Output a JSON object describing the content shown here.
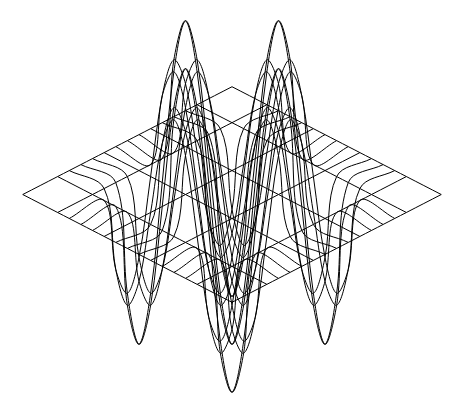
{
  "chart_data": {
    "type": "surface",
    "tick_labels": false,
    "color": "#000000",
    "x": [
      -9,
      -6,
      -5,
      -4,
      -3,
      -2,
      -1,
      0,
      1,
      2,
      3,
      4,
      5,
      6,
      9
    ],
    "y": [
      -9,
      -6,
      -5,
      -4,
      -3,
      -2,
      -1,
      0,
      1,
      2,
      3,
      4,
      5,
      6,
      9
    ],
    "zlim": [
      -1,
      1
    ],
    "z": [
      [
        0,
        0,
        0,
        0,
        0,
        0,
        0,
        0,
        0,
        0,
        0,
        0,
        0,
        0,
        0
      ],
      [
        0,
        0,
        0,
        0,
        0,
        0,
        0,
        0,
        0,
        0,
        0,
        0,
        0,
        0,
        0
      ],
      [
        0,
        0,
        -0.5,
        -0.7,
        -0.5,
        0,
        0.5,
        0.7,
        0.5,
        0,
        -0.5,
        -0.7,
        -0.5,
        0,
        0
      ],
      [
        0,
        0,
        -0.7,
        -1,
        -0.7,
        0,
        0.7,
        1,
        0.7,
        0,
        -0.7,
        -1,
        -0.7,
        0,
        0
      ],
      [
        0,
        0,
        -0.5,
        -0.7,
        -0.5,
        0,
        0.5,
        0.7,
        0.5,
        0,
        -0.5,
        -0.7,
        -0.5,
        0,
        0
      ],
      [
        0,
        0,
        0,
        0,
        0,
        0,
        0,
        0,
        0,
        0,
        0,
        0,
        0,
        0,
        0
      ],
      [
        0,
        0,
        0.5,
        0.7,
        0.5,
        0,
        -0.5,
        -0.7,
        -0.5,
        0,
        0.5,
        0.7,
        0.5,
        0,
        0
      ],
      [
        0,
        0,
        0.7,
        1,
        0.7,
        0,
        -0.7,
        -1,
        -0.7,
        0,
        0.7,
        1,
        0.7,
        0,
        0
      ],
      [
        0,
        0,
        0.5,
        0.7,
        0.5,
        0,
        -0.5,
        -0.7,
        -0.5,
        0,
        0.5,
        0.7,
        0.5,
        0,
        0
      ],
      [
        0,
        0,
        0,
        0,
        0,
        0,
        0,
        0,
        0,
        0,
        0,
        0,
        0,
        0,
        0
      ],
      [
        0,
        0,
        -0.5,
        -0.7,
        -0.5,
        0,
        0.5,
        0.7,
        0.5,
        0,
        -0.5,
        -0.7,
        -0.5,
        0,
        0
      ],
      [
        0,
        0,
        -0.7,
        -1,
        -0.7,
        0,
        0.7,
        1,
        0.7,
        0,
        -0.7,
        -1,
        -0.7,
        0,
        0
      ],
      [
        0,
        0,
        -0.5,
        -0.7,
        -0.5,
        0,
        0.5,
        0.7,
        0.5,
        0,
        -0.5,
        -0.7,
        -0.5,
        0,
        0
      ],
      [
        0,
        0,
        0,
        0,
        0,
        0,
        0,
        0,
        0,
        0,
        0,
        0,
        0,
        0,
        0
      ],
      [
        0,
        0,
        0,
        0,
        0,
        0,
        0,
        0,
        0,
        0,
        0,
        0,
        0,
        0,
        0
      ]
    ]
  }
}
